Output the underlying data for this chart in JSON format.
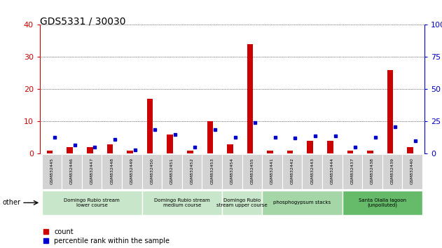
{
  "title": "GDS5331 / 30030",
  "samples": [
    "GSM832445",
    "GSM832446",
    "GSM832447",
    "GSM832448",
    "GSM832449",
    "GSM832450",
    "GSM832451",
    "GSM832452",
    "GSM832453",
    "GSM832454",
    "GSM832455",
    "GSM832441",
    "GSM832442",
    "GSM832443",
    "GSM832444",
    "GSM832437",
    "GSM832438",
    "GSM832439",
    "GSM832440"
  ],
  "counts": [
    1,
    2,
    2,
    3,
    1,
    17,
    6,
    1,
    10,
    3,
    34,
    1,
    1,
    4,
    4,
    1,
    1,
    26,
    2
  ],
  "percentiles": [
    13,
    7,
    5,
    11,
    3,
    19,
    15,
    5,
    19,
    13,
    24,
    13,
    12,
    14,
    14,
    5,
    13,
    21,
    10
  ],
  "groups": [
    {
      "label": "Domingo Rubio stream\nlower course",
      "start": 0,
      "end": 4,
      "color": "#c8e6c9"
    },
    {
      "label": "Domingo Rubio stream\nmedium course",
      "start": 5,
      "end": 8,
      "color": "#c8e6c9"
    },
    {
      "label": "Domingo Rubio\nstream upper course",
      "start": 9,
      "end": 10,
      "color": "#c8e6c9"
    },
    {
      "label": "phosphogypsum stacks",
      "start": 11,
      "end": 14,
      "color": "#a5d6a7"
    },
    {
      "label": "Santa Olalla lagoon\n(unpolluted)",
      "start": 15,
      "end": 18,
      "color": "#66bb6a"
    }
  ],
  "bar_color": "#cc0000",
  "dot_color": "#0000cc",
  "left_axis_color": "#cc0000",
  "right_axis_color": "#0000cc",
  "ylim_left": [
    0,
    40
  ],
  "ylim_right": [
    0,
    100
  ],
  "yticks_left": [
    0,
    10,
    20,
    30,
    40
  ],
  "yticks_right": [
    0,
    25,
    50,
    75,
    100
  ],
  "background_sample": "#d3d3d3",
  "legend_count_label": "count",
  "legend_pct_label": "percentile rank within the sample",
  "other_label": "other"
}
